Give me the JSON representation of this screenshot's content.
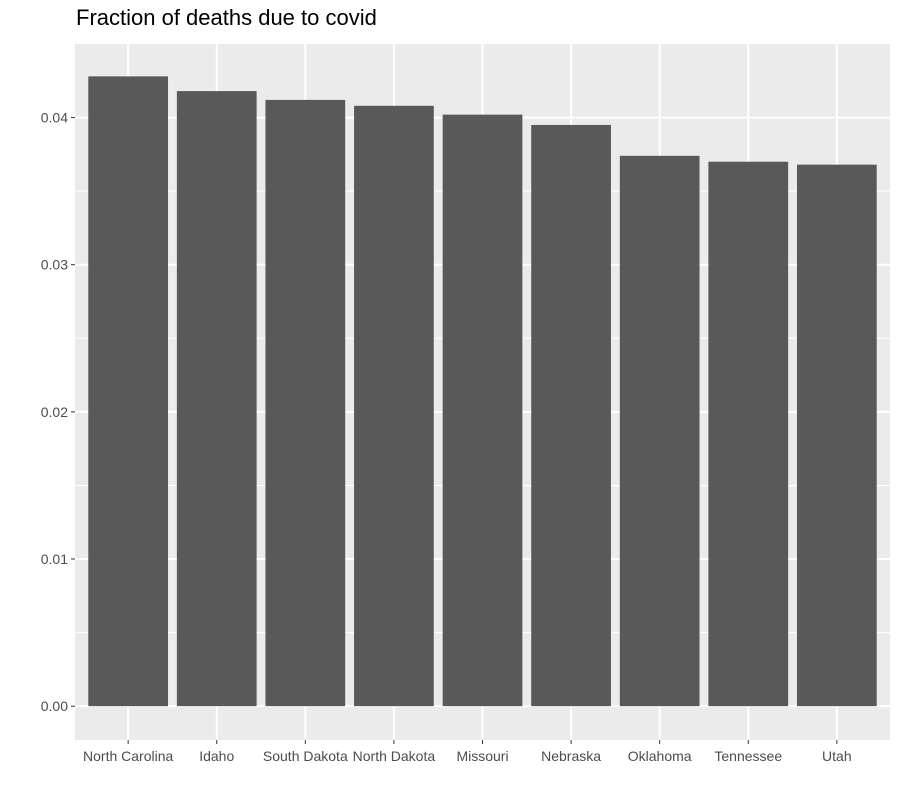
{
  "chart_data": {
    "type": "bar",
    "title": "Fraction of deaths due to covid",
    "xlabel": "",
    "ylabel": "",
    "categories": [
      "North Carolina",
      "Idaho",
      "South Dakota",
      "North Dakota",
      "Missouri",
      "Nebraska",
      "Oklahoma",
      "Tennessee",
      "Utah"
    ],
    "values": [
      0.0428,
      0.0418,
      0.0412,
      0.0408,
      0.0402,
      0.0395,
      0.0374,
      0.037,
      0.0368
    ],
    "ylim": [
      -0.0023,
      0.045
    ],
    "yticks": [
      0.0,
      0.01,
      0.02,
      0.03,
      0.04
    ],
    "ytick_labels": [
      "0.00",
      "0.01",
      "0.02",
      "0.03",
      "0.04"
    ],
    "grid": true,
    "legend": "none",
    "colors": {
      "bar": "#595959",
      "panel": "#ebebeb",
      "grid": "#ffffff",
      "tick_text": "#4d4d4d",
      "tick_mark": "#333333"
    }
  }
}
